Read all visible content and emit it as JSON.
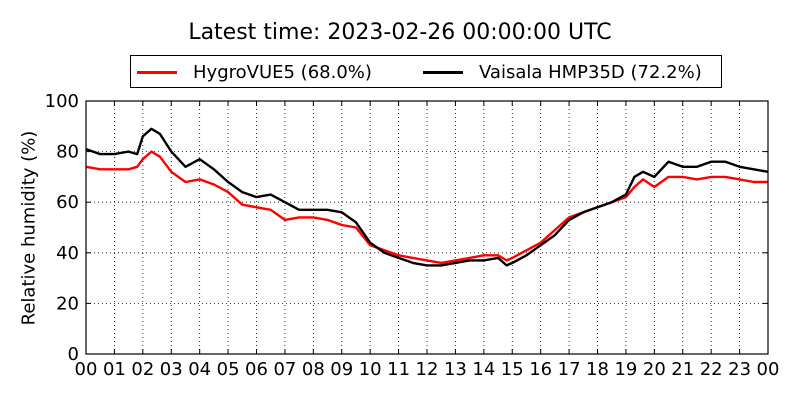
{
  "chart_data": {
    "type": "line",
    "title": "Latest time: 2023-02-26 00:00:00 UTC",
    "xlabel": "",
    "ylabel": "Relative humidity (%)",
    "xlim": [
      0,
      24
    ],
    "ylim": [
      0,
      100
    ],
    "x_ticks": [
      "00",
      "01",
      "02",
      "03",
      "04",
      "05",
      "06",
      "07",
      "08",
      "09",
      "10",
      "11",
      "12",
      "13",
      "14",
      "15",
      "16",
      "17",
      "18",
      "19",
      "20",
      "21",
      "22",
      "23",
      "00"
    ],
    "y_ticks": [
      "0",
      "20",
      "40",
      "60",
      "80",
      "100"
    ],
    "grid": true,
    "legend_position": "top-center",
    "series": [
      {
        "name": "HygroVUE5 (68.0%)",
        "color": "#ff0000",
        "x": [
          0,
          0.5,
          1,
          1.5,
          1.8,
          2,
          2.3,
          2.6,
          3,
          3.5,
          4,
          4.5,
          5,
          5.5,
          6,
          6.5,
          7,
          7.5,
          8,
          8.5,
          9,
          9.5,
          10,
          10.5,
          11,
          11.5,
          12,
          12.5,
          13,
          13.5,
          14,
          14.5,
          14.8,
          15,
          15.5,
          16,
          16.5,
          17,
          17.5,
          18,
          18.5,
          19,
          19.3,
          19.6,
          20,
          20.5,
          21,
          21.5,
          22,
          22.5,
          23,
          23.5,
          24
        ],
        "y": [
          74,
          73,
          73,
          73,
          74,
          77,
          80,
          78,
          72,
          68,
          69,
          67,
          64,
          59,
          58,
          57,
          53,
          54,
          54,
          53,
          51,
          50,
          43,
          41,
          39,
          38,
          37,
          36,
          37,
          38,
          39,
          39,
          37,
          38,
          41,
          44,
          49,
          54,
          56,
          58,
          60,
          62,
          66,
          69,
          66,
          70,
          70,
          69,
          70,
          70,
          69,
          68,
          68
        ]
      },
      {
        "name": "Vaisala HMP35D (72.2%)",
        "color": "#000000",
        "x": [
          0,
          0.5,
          1,
          1.5,
          1.8,
          2,
          2.3,
          2.6,
          3,
          3.5,
          4,
          4.5,
          5,
          5.5,
          6,
          6.5,
          7,
          7.5,
          8,
          8.5,
          9,
          9.5,
          10,
          10.5,
          11,
          11.5,
          12,
          12.5,
          13,
          13.5,
          14,
          14.5,
          14.8,
          15,
          15.5,
          16,
          16.5,
          17,
          17.5,
          18,
          18.5,
          19,
          19.3,
          19.6,
          20,
          20.5,
          21,
          21.5,
          22,
          22.5,
          23,
          23.5,
          24
        ],
        "y": [
          81,
          79,
          79,
          80,
          79,
          86,
          89,
          87,
          80,
          74,
          77,
          73,
          68,
          64,
          62,
          63,
          60,
          57,
          57,
          57,
          56,
          52,
          44,
          40,
          38,
          36,
          35,
          35,
          36,
          37,
          37,
          38,
          35,
          36,
          39,
          43,
          47,
          53,
          56,
          58,
          60,
          63,
          70,
          72,
          70,
          76,
          74,
          74,
          76,
          76,
          74,
          73,
          72
        ]
      }
    ]
  }
}
